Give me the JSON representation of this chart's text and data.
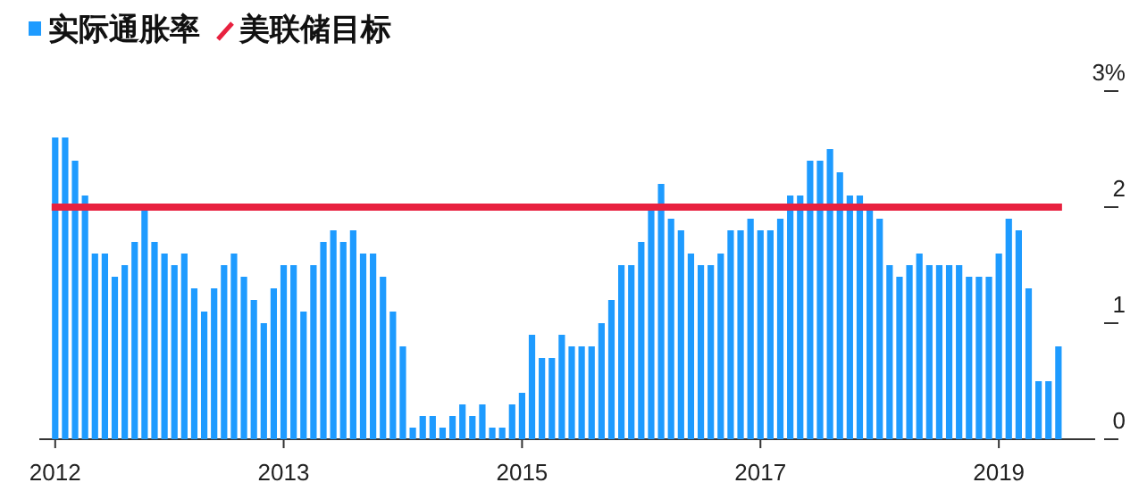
{
  "chart_data": {
    "type": "bar",
    "legend": "top left",
    "categories": [
      "2012",
      null,
      null,
      null,
      null,
      null,
      null,
      null,
      null,
      null,
      null,
      null,
      null,
      null,
      null,
      null,
      null,
      null,
      null,
      null,
      null,
      null,
      null,
      "2013",
      null,
      null,
      null,
      null,
      null,
      null,
      null,
      null,
      null,
      null,
      null,
      null,
      null,
      null,
      null,
      null,
      null,
      null,
      null,
      null,
      null,
      null,
      null,
      "2015",
      null,
      null,
      null,
      null,
      null,
      null,
      null,
      null,
      null,
      null,
      null,
      null,
      null,
      null,
      null,
      null,
      null,
      null,
      null,
      null,
      null,
      null,
      null,
      "2017",
      null,
      null,
      null,
      null,
      null,
      null,
      null,
      null,
      null,
      null,
      null,
      null,
      null,
      null,
      null,
      null,
      null,
      null,
      null,
      null,
      null,
      null,
      null,
      "2019",
      null,
      null,
      null,
      null,
      null,
      null
    ],
    "series": [
      {
        "name": "实际通胀率",
        "color": "#1e9bff",
        "values": [
          2.6,
          2.6,
          2.4,
          2.1,
          1.6,
          1.6,
          1.4,
          1.5,
          1.7,
          2.0,
          1.7,
          1.6,
          1.5,
          1.6,
          1.3,
          1.1,
          1.3,
          1.5,
          1.6,
          1.4,
          1.2,
          1.0,
          1.3,
          1.5,
          1.5,
          1.1,
          1.5,
          1.7,
          1.8,
          1.7,
          1.8,
          1.6,
          1.6,
          1.4,
          1.1,
          0.8,
          0.1,
          0.2,
          0.2,
          0.1,
          0.2,
          0.3,
          0.2,
          0.3,
          0.1,
          0.1,
          0.3,
          0.4,
          0.9,
          0.7,
          0.7,
          0.9,
          0.8,
          0.8,
          0.8,
          1.0,
          1.2,
          1.5,
          1.5,
          1.7,
          2.0,
          2.2,
          1.9,
          1.8,
          1.6,
          1.5,
          1.5,
          1.6,
          1.8,
          1.8,
          1.9,
          1.8,
          1.8,
          1.9,
          2.1,
          2.1,
          2.4,
          2.4,
          2.5,
          2.3,
          2.1,
          2.1,
          2.0,
          1.9,
          1.5,
          1.4,
          1.5,
          1.6,
          1.5,
          1.5,
          1.5,
          1.5,
          1.4,
          1.4,
          1.4,
          1.6,
          1.9,
          1.8,
          1.3,
          0.5,
          0.5,
          0.8
        ]
      }
    ],
    "ref_lines": [
      {
        "axis": "y",
        "value": 2,
        "label": "美联储目标",
        "color": "#e8213f"
      }
    ],
    "ylim": [
      0,
      3
    ],
    "yticks": [
      0,
      1,
      2,
      {
        "value": 3,
        "label": "3%"
      }
    ]
  }
}
